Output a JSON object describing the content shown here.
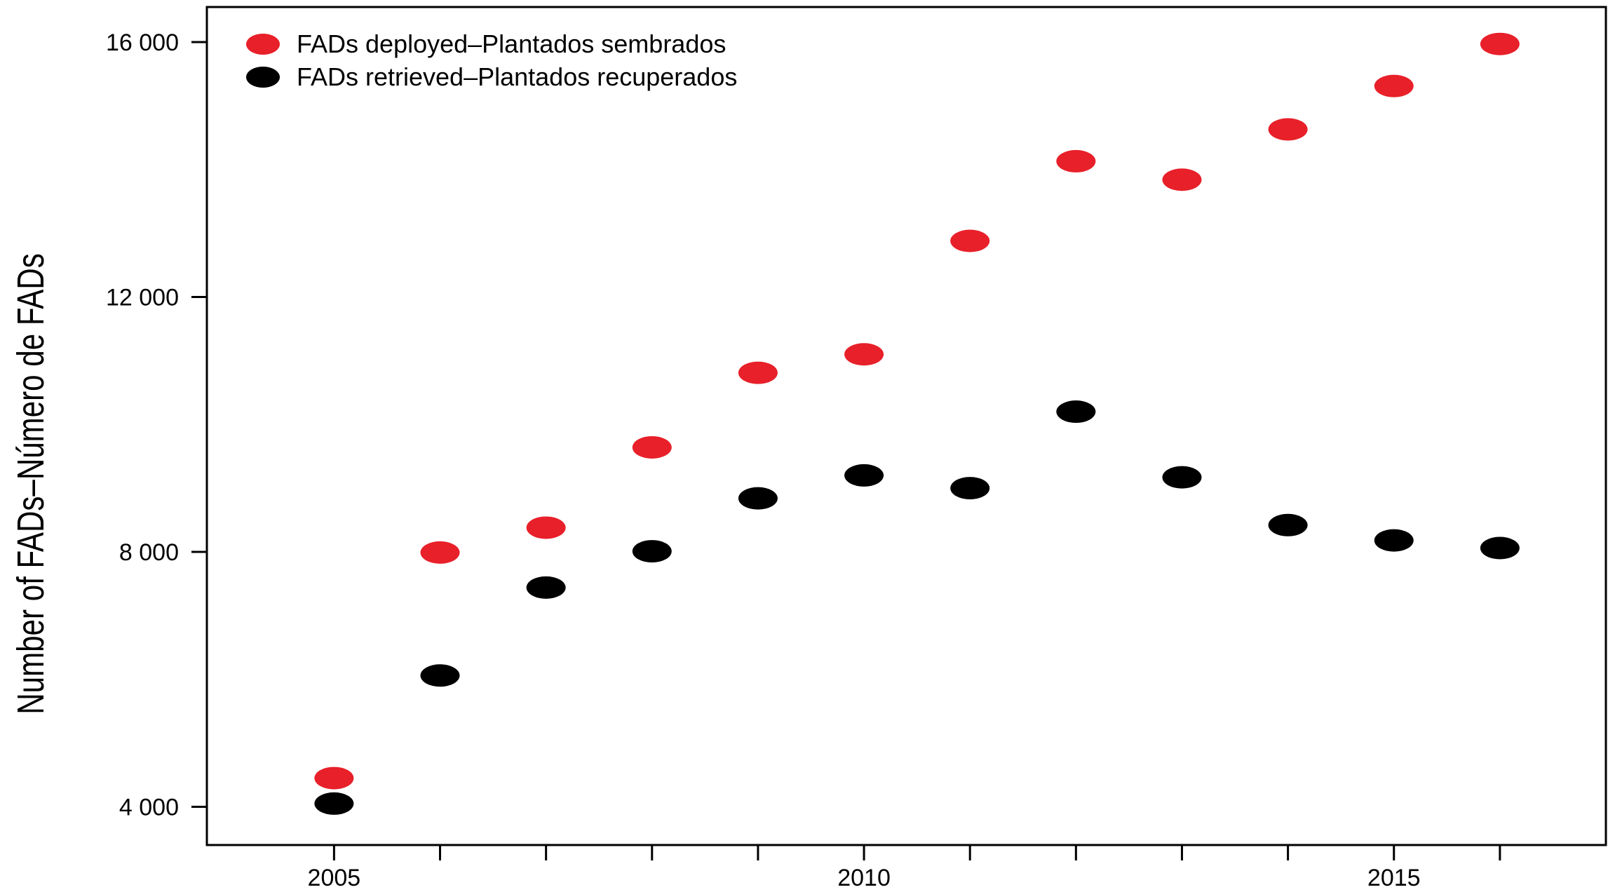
{
  "chart_data": {
    "type": "scatter",
    "title": "",
    "xlabel": "",
    "ylabel": "Number of FADs–Número de FADs",
    "x": [
      2005,
      2006,
      2007,
      2008,
      2009,
      2010,
      2011,
      2012,
      2013,
      2014,
      2015,
      2016
    ],
    "xlim": [
      2003.8,
      2017
    ],
    "ylim": [
      3400,
      16550
    ],
    "x_tick_values": [
      2005,
      2006,
      2007,
      2008,
      2009,
      2010,
      2011,
      2012,
      2013,
      2014,
      2015,
      2016
    ],
    "x_tick_labels": [
      "2005",
      "",
      "",
      "",
      "",
      "2010",
      "",
      "",
      "",
      "",
      "2015",
      ""
    ],
    "y_tick_values": [
      4000,
      8000,
      12000,
      16000
    ],
    "y_tick_labels": [
      "4 000",
      "8 000",
      "12 000",
      "16 000"
    ],
    "grid": false,
    "legend_position": "top-left",
    "series": [
      {
        "name": "FADs deployed–Plantados sembrados",
        "color": "#e8202a",
        "values": [
          4450,
          7990,
          8380,
          9640,
          10810,
          11100,
          12880,
          14130,
          13840,
          14630,
          15310,
          15970
        ]
      },
      {
        "name": "FADs retrieved–Plantados recuperados",
        "color": "#000000",
        "values": [
          4050,
          6060,
          7440,
          8010,
          8840,
          9200,
          9000,
          10200,
          9170,
          8420,
          8180,
          8060
        ]
      }
    ]
  }
}
